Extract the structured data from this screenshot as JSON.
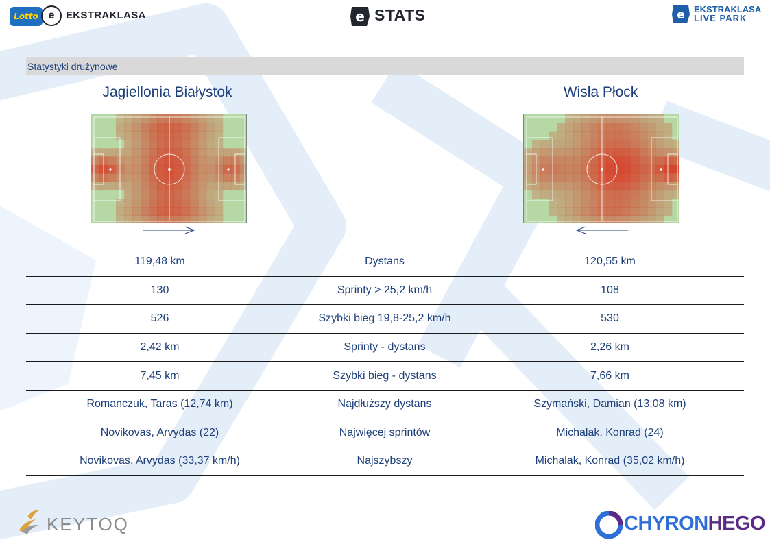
{
  "header": {
    "lotto_logo_text": "Lotto",
    "ekstraklasa_text": "EKSTRAKLASA",
    "stats_title": "STATS",
    "livepark_line1": "EKSTRAKLASA",
    "livepark_line2": "LIVE PARK"
  },
  "section": {
    "title": "Statystyki drużynowe"
  },
  "teams": {
    "home": "Jagiellonia Białystok",
    "away": "Wisła Płock"
  },
  "stats": [
    {
      "home": "119,48 km",
      "label": "Dystans",
      "away": "120,55 km"
    },
    {
      "home": "130",
      "label": "Sprinty > 25,2 km/h",
      "away": "108"
    },
    {
      "home": "526",
      "label": "Szybki bieg 19,8-25,2 km/h",
      "away": "530"
    },
    {
      "home": "2,42 km",
      "label": "Sprinty - dystans",
      "away": "2,26 km"
    },
    {
      "home": "7,45 km",
      "label": "Szybki bieg - dystans",
      "away": "7,66 km"
    },
    {
      "home": "Romanczuk, Taras (12,74 km)",
      "label": "Najdłuższy dystans",
      "away": "Szymański, Damian (13,08 km)"
    },
    {
      "home": "Novikovas, Arvydas (22)",
      "label": "Najwięcej sprintów",
      "away": "Michalak, Konrad (24)"
    },
    {
      "home": "Novikovas, Arvydas (33,37 km/h)",
      "label": "Najszybszy",
      "away": "Michalak, Konrad (35,02 km/h)"
    }
  ],
  "footer": {
    "keytoq": "KEYTOQ",
    "chyron": "CHYRON",
    "hego": "HEGO"
  },
  "colors": {
    "accent": "#1d3f7a",
    "pitch_green": "#a8cf9a",
    "heat_red": "#d6402a"
  }
}
